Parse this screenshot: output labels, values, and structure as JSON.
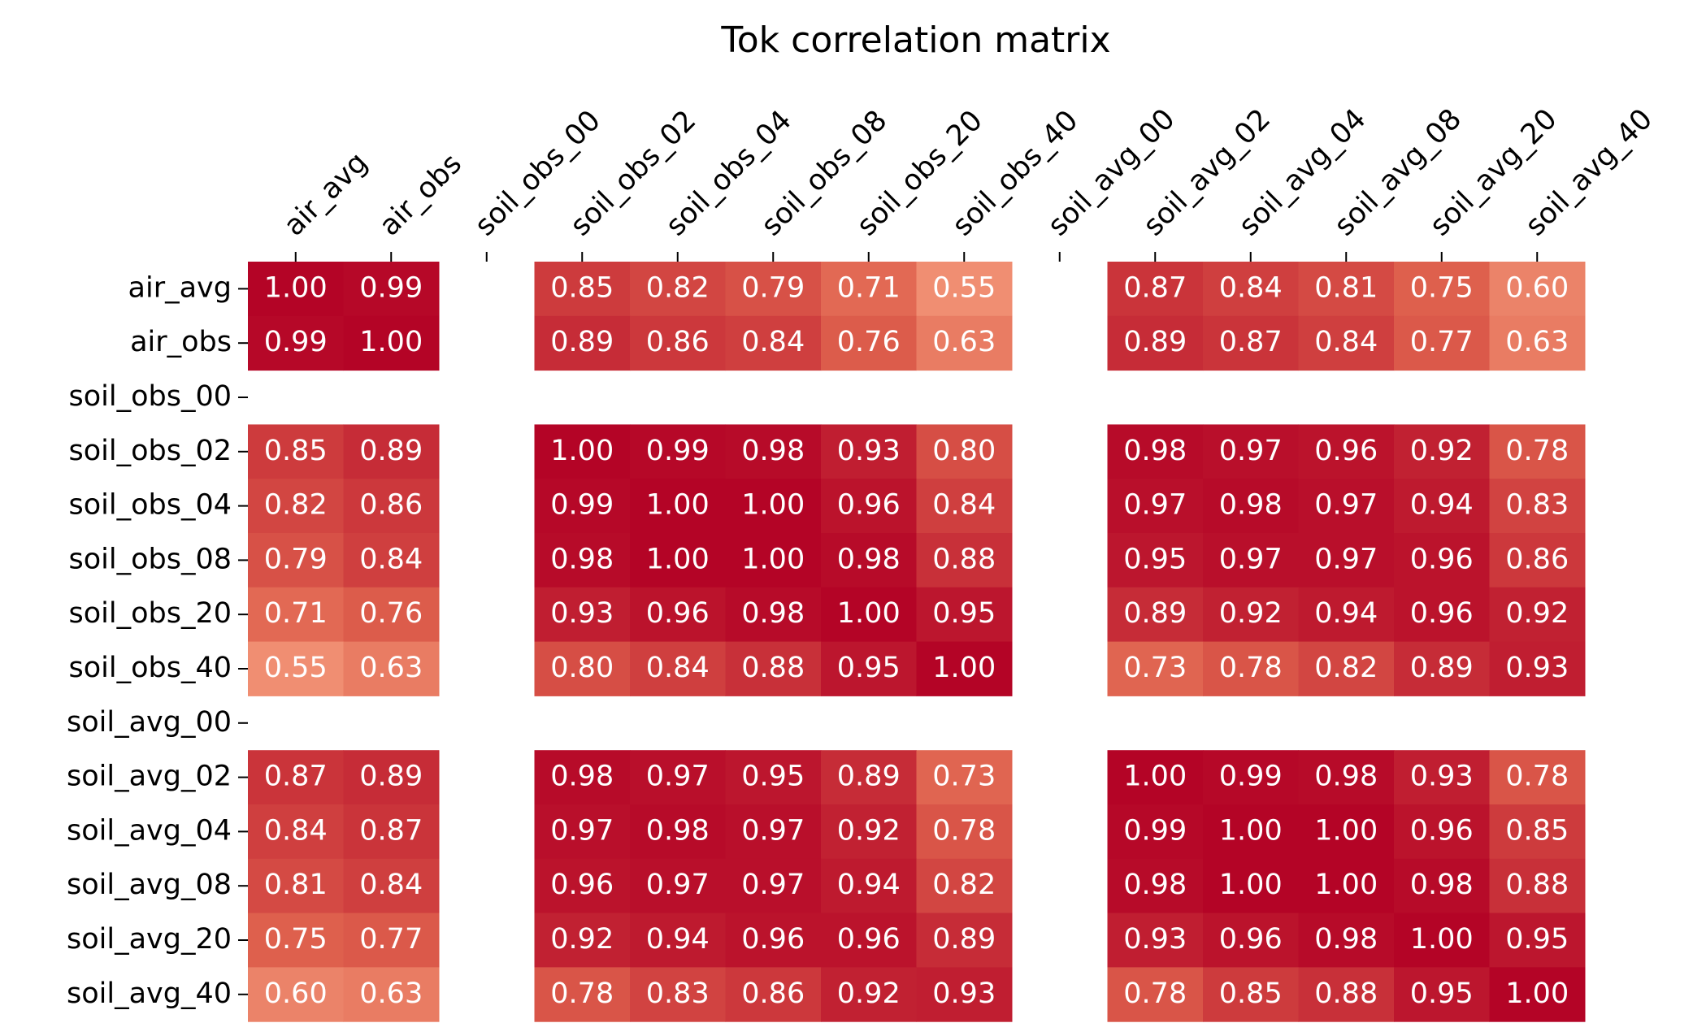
{
  "chart_data": {
    "type": "heatmap",
    "title": "Tok correlation matrix",
    "x_categories": [
      "air_avg",
      "air_obs",
      "soil_obs_00",
      "soil_obs_02",
      "soil_obs_04",
      "soil_obs_08",
      "soil_obs_20",
      "soil_obs_40",
      "soil_avg_00",
      "soil_avg_02",
      "soil_avg_04",
      "soil_avg_08",
      "soil_avg_20",
      "soil_avg_40"
    ],
    "y_categories": [
      "air_avg",
      "air_obs",
      "soil_obs_00",
      "soil_obs_02",
      "soil_obs_04",
      "soil_obs_08",
      "soil_obs_20",
      "soil_obs_40",
      "soil_avg_00",
      "soil_avg_02",
      "soil_avg_04",
      "soil_avg_08",
      "soil_avg_20",
      "soil_avg_40"
    ],
    "values": [
      [
        1,
        0.99,
        null,
        0.85,
        0.82,
        0.79,
        0.71,
        0.55,
        null,
        0.87,
        0.84,
        0.81,
        0.75,
        0.6
      ],
      [
        0.99,
        1,
        null,
        0.89,
        0.86,
        0.84,
        0.76,
        0.63,
        null,
        0.89,
        0.87,
        0.84,
        0.77,
        0.63
      ],
      [
        null,
        null,
        null,
        null,
        null,
        null,
        null,
        null,
        null,
        null,
        null,
        null,
        null,
        null
      ],
      [
        0.85,
        0.89,
        null,
        1,
        0.99,
        0.98,
        0.93,
        0.8,
        null,
        0.98,
        0.97,
        0.96,
        0.92,
        0.78
      ],
      [
        0.82,
        0.86,
        null,
        0.99,
        1,
        1,
        0.96,
        0.84,
        null,
        0.97,
        0.98,
        0.97,
        0.94,
        0.83
      ],
      [
        0.79,
        0.84,
        null,
        0.98,
        1,
        1,
        0.98,
        0.88,
        null,
        0.95,
        0.97,
        0.97,
        0.96,
        0.86
      ],
      [
        0.71,
        0.76,
        null,
        0.93,
        0.96,
        0.98,
        1,
        0.95,
        null,
        0.89,
        0.92,
        0.94,
        0.96,
        0.92
      ],
      [
        0.55,
        0.63,
        null,
        0.8,
        0.84,
        0.88,
        0.95,
        1,
        null,
        0.73,
        0.78,
        0.82,
        0.89,
        0.93
      ],
      [
        null,
        null,
        null,
        null,
        null,
        null,
        null,
        null,
        null,
        null,
        null,
        null,
        null,
        null
      ],
      [
        0.87,
        0.89,
        null,
        0.98,
        0.97,
        0.95,
        0.89,
        0.73,
        null,
        1,
        0.99,
        0.98,
        0.93,
        0.78
      ],
      [
        0.84,
        0.87,
        null,
        0.97,
        0.98,
        0.97,
        0.92,
        0.78,
        null,
        0.99,
        1,
        1,
        0.96,
        0.85
      ],
      [
        0.81,
        0.84,
        null,
        0.96,
        0.97,
        0.97,
        0.94,
        0.82,
        null,
        0.98,
        1,
        1,
        0.98,
        0.88
      ],
      [
        0.75,
        0.77,
        null,
        0.92,
        0.94,
        0.96,
        0.96,
        0.89,
        null,
        0.93,
        0.96,
        0.98,
        1,
        0.95
      ],
      [
        0.6,
        0.63,
        null,
        0.78,
        0.83,
        0.86,
        0.92,
        0.93,
        null,
        0.78,
        0.85,
        0.88,
        0.95,
        1
      ]
    ],
    "value_labels": [
      [
        "1.00",
        "0.99",
        null,
        "0.85",
        "0.82",
        "0.79",
        "0.71",
        "0.55",
        null,
        "0.87",
        "0.84",
        "0.81",
        "0.75",
        "0.60"
      ],
      [
        "0.99",
        "1.00",
        null,
        "0.89",
        "0.86",
        "0.84",
        "0.76",
        "0.63",
        null,
        "0.89",
        "0.87",
        "0.84",
        "0.77",
        "0.63"
      ],
      [
        null,
        null,
        null,
        null,
        null,
        null,
        null,
        null,
        null,
        null,
        null,
        null,
        null,
        null
      ],
      [
        "0.85",
        "0.89",
        null,
        "1.00",
        "0.99",
        "0.98",
        "0.93",
        "0.80",
        null,
        "0.98",
        "0.97",
        "0.96",
        "0.92",
        "0.78"
      ],
      [
        "0.82",
        "0.86",
        null,
        "0.99",
        "1.00",
        "1.00",
        "0.96",
        "0.84",
        null,
        "0.97",
        "0.98",
        "0.97",
        "0.94",
        "0.83"
      ],
      [
        "0.79",
        "0.84",
        null,
        "0.98",
        "1.00",
        "1.00",
        "0.98",
        "0.88",
        null,
        "0.95",
        "0.97",
        "0.97",
        "0.96",
        "0.86"
      ],
      [
        "0.71",
        "0.76",
        null,
        "0.93",
        "0.96",
        "0.98",
        "1.00",
        "0.95",
        null,
        "0.89",
        "0.92",
        "0.94",
        "0.96",
        "0.92"
      ],
      [
        "0.55",
        "0.63",
        null,
        "0.80",
        "0.84",
        "0.88",
        "0.95",
        "1.00",
        null,
        "0.73",
        "0.78",
        "0.82",
        "0.89",
        "0.93"
      ],
      [
        null,
        null,
        null,
        null,
        null,
        null,
        null,
        null,
        null,
        null,
        null,
        null,
        null,
        null
      ],
      [
        "0.87",
        "0.89",
        null,
        "0.98",
        "0.97",
        "0.95",
        "0.89",
        "0.73",
        null,
        "1.00",
        "0.99",
        "0.98",
        "0.93",
        "0.78"
      ],
      [
        "0.84",
        "0.87",
        null,
        "0.97",
        "0.98",
        "0.97",
        "0.92",
        "0.78",
        null,
        "0.99",
        "1.00",
        "1.00",
        "0.96",
        "0.85"
      ],
      [
        "0.81",
        "0.84",
        null,
        "0.96",
        "0.97",
        "0.97",
        "0.94",
        "0.82",
        null,
        "0.98",
        "1.00",
        "1.00",
        "0.98",
        "0.88"
      ],
      [
        "0.75",
        "0.77",
        null,
        "0.92",
        "0.94",
        "0.96",
        "0.96",
        "0.89",
        null,
        "0.93",
        "0.96",
        "0.98",
        "1.00",
        "0.95"
      ],
      [
        "0.60",
        "0.63",
        null,
        "0.78",
        "0.83",
        "0.86",
        "0.92",
        "0.93",
        null,
        "0.78",
        "0.85",
        "0.88",
        "0.95",
        "1.00"
      ]
    ],
    "colormap": {
      "vmin": -1,
      "vmax": 1,
      "stops": [
        [
          0,
          "#3b4cc0"
        ],
        [
          0.25,
          "#8db0fe"
        ],
        [
          0.5,
          "#dddcdc"
        ],
        [
          0.625,
          "#f2cbb7"
        ],
        [
          0.75,
          "#f49a7b"
        ],
        [
          0.875,
          "#de604d"
        ],
        [
          1,
          "#b40426"
        ]
      ]
    }
  }
}
